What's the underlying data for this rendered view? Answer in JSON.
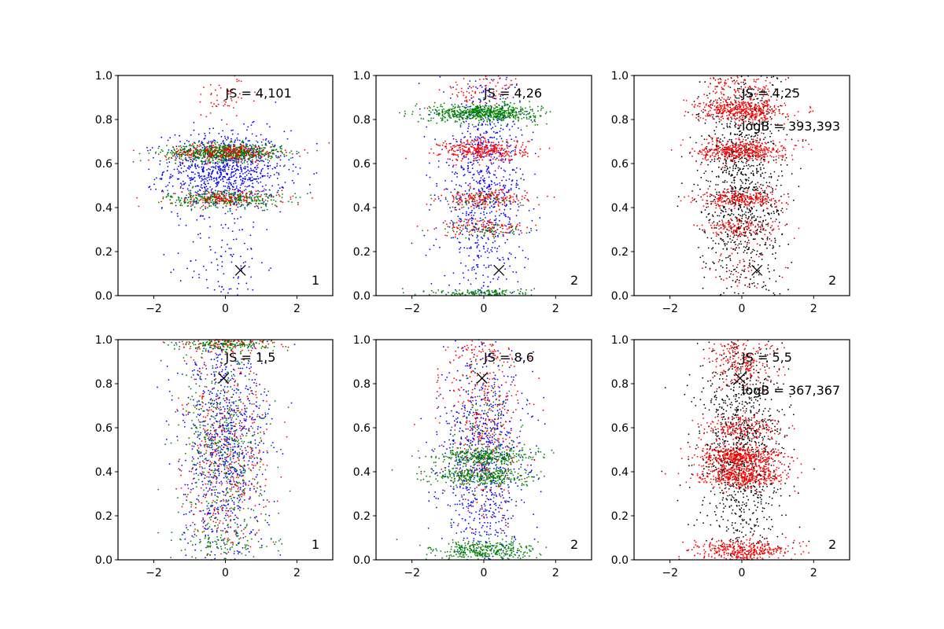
{
  "chart_data": [
    {
      "type": "scatter",
      "panel": "row1-col1",
      "xlim": [
        -3,
        3
      ],
      "ylim": [
        0,
        1
      ],
      "xticks": [
        "−2",
        "0",
        "2"
      ],
      "yticks": [
        "0.0",
        "0.2",
        "0.4",
        "0.6",
        "0.8",
        "1.0"
      ],
      "annotation": "JS = 4,101",
      "corner_label": "1",
      "marker_x": {
        "x": 0.42,
        "y": 0.115
      },
      "series": [
        {
          "color": "#0000ff",
          "bands": [
            {
              "y": 0.57,
              "spread": 0.09,
              "n": 900,
              "sx": 0.85
            },
            {
              "y": 0.15,
              "spread": 0.15,
              "n": 120,
              "sx": 0.55
            }
          ]
        },
        {
          "color": "#008000",
          "bands": [
            {
              "y": 0.65,
              "spread": 0.02,
              "n": 700,
              "sx": 0.8
            },
            {
              "y": 0.44,
              "spread": 0.02,
              "n": 350,
              "sx": 0.8
            }
          ]
        },
        {
          "color": "#ff0000",
          "bands": [
            {
              "y": 0.65,
              "spread": 0.02,
              "n": 260,
              "sx": 0.8
            },
            {
              "y": 0.44,
              "spread": 0.02,
              "n": 160,
              "sx": 0.8
            },
            {
              "y": 0.9,
              "spread": 0.05,
              "n": 50,
              "sx": 0.5
            }
          ]
        }
      ]
    },
    {
      "type": "scatter",
      "panel": "row1-col2",
      "xlim": [
        -3,
        3
      ],
      "ylim": [
        0,
        1
      ],
      "xticks": [
        "−2",
        "0",
        "2"
      ],
      "yticks": [
        "0.0",
        "0.2",
        "0.4",
        "0.6",
        "0.8",
        "1.0"
      ],
      "annotation": "JS = 4,26",
      "corner_label": "2",
      "marker_x": {
        "x": 0.42,
        "y": 0.115
      },
      "series": [
        {
          "color": "#0000ff",
          "bands": [
            {
              "y": 0.5,
              "spread": 0.28,
              "n": 900,
              "sx": 0.6
            }
          ]
        },
        {
          "color": "#ff0000",
          "bands": [
            {
              "y": 0.66,
              "spread": 0.025,
              "n": 350,
              "sx": 0.6
            },
            {
              "y": 0.44,
              "spread": 0.02,
              "n": 200,
              "sx": 0.6
            },
            {
              "y": 0.31,
              "spread": 0.02,
              "n": 120,
              "sx": 0.6
            },
            {
              "y": 0.93,
              "spread": 0.04,
              "n": 80,
              "sx": 0.6
            }
          ]
        },
        {
          "color": "#008000",
          "bands": [
            {
              "y": 0.83,
              "spread": 0.02,
              "n": 650,
              "sx": 0.75
            },
            {
              "y": 0.01,
              "spread": 0.01,
              "n": 150,
              "sx": 0.7
            },
            {
              "y": 0.3,
              "spread": 0.02,
              "n": 60,
              "sx": 0.6
            },
            {
              "y": 0.44,
              "spread": 0.02,
              "n": 50,
              "sx": 0.6
            }
          ]
        }
      ]
    },
    {
      "type": "scatter",
      "panel": "row1-col3",
      "xlim": [
        -3,
        3
      ],
      "ylim": [
        0,
        1
      ],
      "xticks": [
        "−2",
        "0",
        "2"
      ],
      "yticks": [
        "0.0",
        "0.2",
        "0.4",
        "0.6",
        "0.8",
        "1.0"
      ],
      "annotation": "JS = 4,25",
      "annotation2": "logB = 393,393",
      "corner_label": "2",
      "marker_x": {
        "x": 0.42,
        "y": 0.115
      },
      "series": [
        {
          "color": "#000000",
          "bands": [
            {
              "y": 0.5,
              "spread": 0.28,
              "n": 1100,
              "sx": 0.6
            }
          ]
        },
        {
          "color": "#ff0000",
          "bands": [
            {
              "y": 0.84,
              "spread": 0.025,
              "n": 450,
              "sx": 0.6
            },
            {
              "y": 0.66,
              "spread": 0.025,
              "n": 450,
              "sx": 0.6
            },
            {
              "y": 0.44,
              "spread": 0.02,
              "n": 280,
              "sx": 0.6
            },
            {
              "y": 0.31,
              "spread": 0.02,
              "n": 140,
              "sx": 0.6
            },
            {
              "y": 0.95,
              "spread": 0.04,
              "n": 120,
              "sx": 0.5
            },
            {
              "y": 0.12,
              "spread": 0.1,
              "n": 60,
              "sx": 0.4
            }
          ]
        }
      ]
    },
    {
      "type": "scatter",
      "panel": "row2-col1",
      "xlim": [
        -3,
        3
      ],
      "ylim": [
        0,
        1
      ],
      "xticks": [
        "−2",
        "0",
        "2"
      ],
      "yticks": [
        "0.0",
        "0.2",
        "0.4",
        "0.6",
        "0.8",
        "1.0"
      ],
      "annotation": "JS = 1,5",
      "corner_label": "1",
      "marker_x": {
        "x": -0.05,
        "y": 0.825
      },
      "series": [
        {
          "color": "#0000ff",
          "bands": [
            {
              "y": 0.5,
              "spread": 0.28,
              "n": 900,
              "sx": 0.6
            }
          ]
        },
        {
          "color": "#ff0000",
          "bands": [
            {
              "y": 0.5,
              "spread": 0.28,
              "n": 450,
              "sx": 0.6
            },
            {
              "y": 0.98,
              "spread": 0.015,
              "n": 120,
              "sx": 0.7
            }
          ]
        },
        {
          "color": "#008000",
          "bands": [
            {
              "y": 0.5,
              "spread": 0.28,
              "n": 500,
              "sx": 0.6
            },
            {
              "y": 0.98,
              "spread": 0.015,
              "n": 150,
              "sx": 0.7
            },
            {
              "y": 0.08,
              "spread": 0.03,
              "n": 80,
              "sx": 0.6
            }
          ]
        }
      ]
    },
    {
      "type": "scatter",
      "panel": "row2-col2",
      "xlim": [
        -3,
        3
      ],
      "ylim": [
        0,
        1
      ],
      "xticks": [
        "−2",
        "0",
        "2"
      ],
      "yticks": [
        "0.0",
        "0.2",
        "0.4",
        "0.6",
        "0.8",
        "1.0"
      ],
      "annotation": "JS = 8,6",
      "corner_label": "2",
      "marker_x": {
        "x": -0.05,
        "y": 0.825
      },
      "series": [
        {
          "color": "#0000ff",
          "bands": [
            {
              "y": 0.45,
              "spread": 0.26,
              "n": 850,
              "sx": 0.6
            }
          ]
        },
        {
          "color": "#ff0000",
          "bands": [
            {
              "y": 0.6,
              "spread": 0.2,
              "n": 350,
              "sx": 0.55
            },
            {
              "y": 0.95,
              "spread": 0.04,
              "n": 60,
              "sx": 0.5
            }
          ]
        },
        {
          "color": "#008000",
          "bands": [
            {
              "y": 0.47,
              "spread": 0.02,
              "n": 330,
              "sx": 0.7
            },
            {
              "y": 0.38,
              "spread": 0.02,
              "n": 330,
              "sx": 0.7
            },
            {
              "y": 0.04,
              "spread": 0.025,
              "n": 350,
              "sx": 0.7
            },
            {
              "y": 0.6,
              "spread": 0.15,
              "n": 100,
              "sx": 0.5
            }
          ]
        }
      ]
    },
    {
      "type": "scatter",
      "panel": "row2-col3",
      "xlim": [
        -3,
        3
      ],
      "ylim": [
        0,
        1
      ],
      "xticks": [
        "−2",
        "0",
        "2"
      ],
      "yticks": [
        "0.0",
        "0.2",
        "0.4",
        "0.6",
        "0.8",
        "1.0"
      ],
      "annotation": "JS = 5,5",
      "annotation2": "logB = 367,367",
      "corner_label": "2",
      "marker_x": {
        "x": -0.05,
        "y": 0.825
      },
      "series": [
        {
          "color": "#000000",
          "bands": [
            {
              "y": 0.5,
              "spread": 0.28,
              "n": 1100,
              "sx": 0.6
            }
          ]
        },
        {
          "color": "#ff0000",
          "bands": [
            {
              "y": 0.47,
              "spread": 0.025,
              "n": 450,
              "sx": 0.6
            },
            {
              "y": 0.38,
              "spread": 0.025,
              "n": 450,
              "sx": 0.6
            },
            {
              "y": 0.04,
              "spread": 0.025,
              "n": 380,
              "sx": 0.65
            },
            {
              "y": 0.6,
              "spread": 0.03,
              "n": 200,
              "sx": 0.55
            },
            {
              "y": 0.9,
              "spread": 0.06,
              "n": 220,
              "sx": 0.5
            }
          ]
        }
      ]
    }
  ]
}
